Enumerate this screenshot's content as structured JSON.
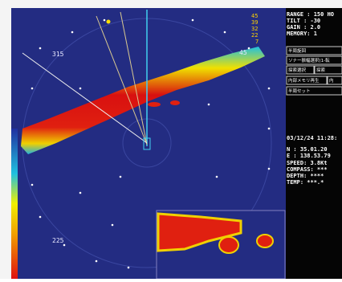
{
  "display": {
    "bearing_labels": [
      "315",
      "45",
      "225"
    ]
  },
  "color_scale": [
    "45",
    "39",
    "32",
    "22",
    "7"
  ],
  "status": {
    "range": "RANGE :  150 HO",
    "tilt": "TILT  :  -30",
    "gain": "GAIN  :  2.0",
    "memory": "MEMORY:   1"
  },
  "menu": [
    "半周旋回",
    "ソナー振幅選択(1-転",
    "探索選択",
    "探索",
    "内部メモリ再生",
    "内",
    "半周セット"
  ],
  "nav": {
    "datetime": "03/12/24 11:28:",
    "lat": "N :  35.01.20",
    "lon": "E : 138.53.79",
    "speed": "SPEED:   3.8Kt",
    "compass": "COMPASS: ***",
    "depth": "DEPTH:  ****",
    "temp": "TEMP: ***.*"
  }
}
